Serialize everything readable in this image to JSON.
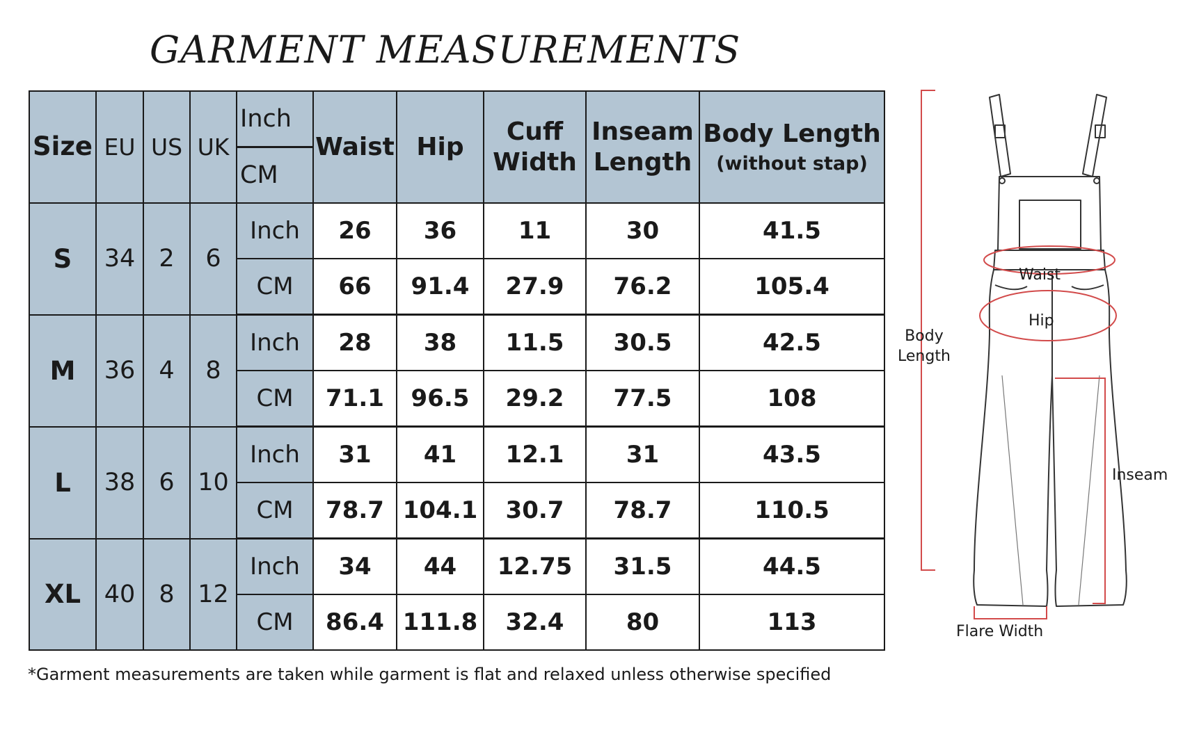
{
  "title": "GARMENT MEASUREMENTS",
  "table": {
    "headers": {
      "size": "Size",
      "eu": "EU",
      "us": "US",
      "uk": "UK",
      "unit_inch": "Inch",
      "unit_cm": "CM",
      "waist": "Waist",
      "hip": "Hip",
      "cuff_1": "Cuff",
      "cuff_2": "Width",
      "inseam_1": "Inseam",
      "inseam_2": "Length",
      "body_1": "Body Length",
      "body_2": "(without stap)"
    },
    "rows": [
      {
        "size": "S",
        "eu": "34",
        "us": "2",
        "uk": "6",
        "inch": {
          "unit": "Inch",
          "waist": "26",
          "hip": "36",
          "cuff": "11",
          "inseam": "30",
          "body": "41.5"
        },
        "cm": {
          "unit": "CM",
          "waist": "66",
          "hip": "91.4",
          "cuff": "27.9",
          "inseam": "76.2",
          "body": "105.4"
        }
      },
      {
        "size": "M",
        "eu": "36",
        "us": "4",
        "uk": "8",
        "inch": {
          "unit": "Inch",
          "waist": "28",
          "hip": "38",
          "cuff": "11.5",
          "inseam": "30.5",
          "body": "42.5"
        },
        "cm": {
          "unit": "CM",
          "waist": "71.1",
          "hip": "96.5",
          "cuff": "29.2",
          "inseam": "77.5",
          "body": "108"
        }
      },
      {
        "size": "L",
        "eu": "38",
        "us": "6",
        "uk": "10",
        "inch": {
          "unit": "Inch",
          "waist": "31",
          "hip": "41",
          "cuff": "12.1",
          "inseam": "31",
          "body": "43.5"
        },
        "cm": {
          "unit": "CM",
          "waist": "78.7",
          "hip": "104.1",
          "cuff": "30.7",
          "inseam": "78.7",
          "body": "110.5"
        }
      },
      {
        "size": "XL",
        "eu": "40",
        "us": "8",
        "uk": "12",
        "inch": {
          "unit": "Inch",
          "waist": "34",
          "hip": "44",
          "cuff": "12.75",
          "inseam": "31.5",
          "body": "44.5"
        },
        "cm": {
          "unit": "CM",
          "waist": "86.4",
          "hip": "111.8",
          "cuff": "32.4",
          "inseam": "80",
          "body": "113"
        }
      }
    ]
  },
  "footnote": "*Garment measurements are taken while garment is flat and relaxed unless otherwise specified",
  "diagram": {
    "labels": {
      "body_1": "Body",
      "body_2": "Length",
      "waist": "Waist",
      "hip": "Hip",
      "inseam": "Inseam",
      "flare": "Flare Width"
    },
    "measure_color": "#d24a4a",
    "header_bg": "#b3c5d3"
  }
}
